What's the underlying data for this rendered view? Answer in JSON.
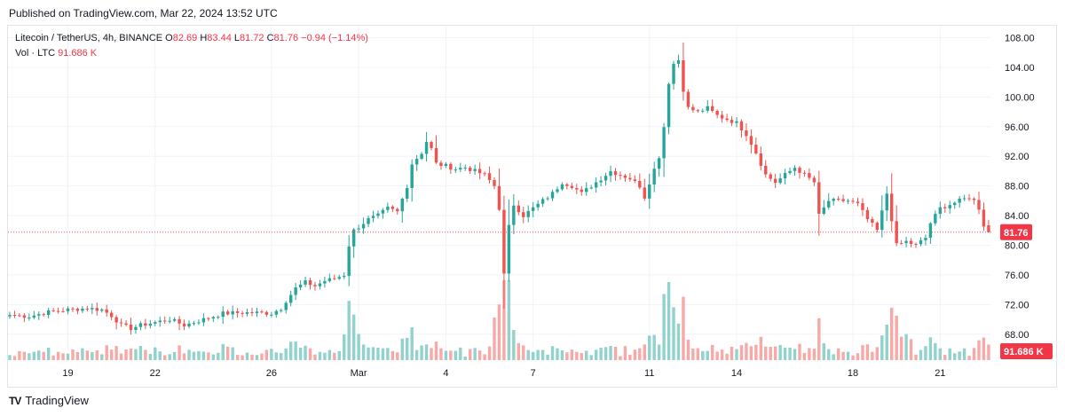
{
  "header": {
    "published": "Published on TradingView.com, Mar 22, 2024 13:52 UTC"
  },
  "legend": {
    "symbol": "Litecoin / TetherUS, 4h, BINANCE",
    "o_label": "O",
    "o_value": "82.69",
    "h_label": "H",
    "h_value": "83.44",
    "l_label": "L",
    "l_value": "81.72",
    "c_label": "C",
    "c_value": "81.76",
    "change": "−0.94 (−1.14%)",
    "vol_label": "Vol · LTC",
    "vol_value": "91.686 K"
  },
  "footer": {
    "brand": "TradingView",
    "logo_text": "TV"
  },
  "colors": {
    "up": "#26a69a",
    "down": "#ef5350",
    "vol_up": "#92d2cc",
    "vol_down": "#f7a9a7",
    "tag": "#f23645",
    "grid": "#f0f3fa",
    "last_line": "#ef5350"
  },
  "chart_data": {
    "type": "candlestick",
    "symbol": "Litecoin / TetherUS",
    "interval": "4h",
    "exchange": "BINANCE",
    "y_ticks": [
      "108.00",
      "104.00",
      "100.00",
      "96.00",
      "92.00",
      "88.00",
      "84.00",
      "80.00",
      "76.00",
      "72.00",
      "68.00"
    ],
    "ylim": [
      64.5,
      109.5
    ],
    "x_ticks": [
      {
        "label": "19",
        "bar": 12
      },
      {
        "label": "22",
        "bar": 30
      },
      {
        "label": "26",
        "bar": 54
      },
      {
        "label": "Mar",
        "bar": 72
      },
      {
        "label": "4",
        "bar": 90
      },
      {
        "label": "7",
        "bar": 108
      },
      {
        "label": "11",
        "bar": 132
      },
      {
        "label": "14",
        "bar": 150
      },
      {
        "label": "18",
        "bar": 174
      },
      {
        "label": "21",
        "bar": 192
      }
    ],
    "last_price": "81.76",
    "last_volume": "91.686 K",
    "grid": true,
    "anchors": [
      [
        0,
        70.6
      ],
      [
        4,
        70.4
      ],
      [
        8,
        71.0
      ],
      [
        12,
        71.3
      ],
      [
        16,
        71.5
      ],
      [
        19,
        71.3
      ],
      [
        21,
        70.5
      ],
      [
        23,
        69.2
      ],
      [
        25,
        68.8
      ],
      [
        27,
        69.2
      ],
      [
        30,
        69.6
      ],
      [
        33,
        70.0
      ],
      [
        36,
        69.2
      ],
      [
        38,
        69.6
      ],
      [
        41,
        70.2
      ],
      [
        44,
        70.8
      ],
      [
        48,
        70.9
      ],
      [
        52,
        70.9
      ],
      [
        54,
        70.8
      ],
      [
        56,
        71.5
      ],
      [
        57,
        72.5
      ],
      [
        59,
        74.2
      ],
      [
        61,
        75.0
      ],
      [
        63,
        74.5
      ],
      [
        65,
        75.2
      ],
      [
        67,
        75.5
      ],
      [
        69,
        76.0
      ],
      [
        70,
        80.0
      ],
      [
        71,
        82.0
      ],
      [
        72,
        82.5
      ],
      [
        74,
        83.5
      ],
      [
        76,
        84.0
      ],
      [
        78,
        85.0
      ],
      [
        80,
        84.5
      ],
      [
        82,
        88.0
      ],
      [
        83,
        91.0
      ],
      [
        85,
        92.5
      ],
      [
        86,
        94.0
      ],
      [
        87,
        93.0
      ],
      [
        88,
        91.0
      ],
      [
        90,
        90.7
      ],
      [
        92,
        90.3
      ],
      [
        94,
        90.5
      ],
      [
        96,
        90.0
      ],
      [
        98,
        89.5
      ],
      [
        100,
        88.0
      ],
      [
        101,
        85.0
      ],
      [
        102,
        76.0
      ],
      [
        103,
        82.5
      ],
      [
        104,
        85.5
      ],
      [
        106,
        84.0
      ],
      [
        108,
        85.0
      ],
      [
        110,
        86.0
      ],
      [
        112,
        87.0
      ],
      [
        114,
        88.5
      ],
      [
        116,
        88.0
      ],
      [
        118,
        87.0
      ],
      [
        120,
        88.0
      ],
      [
        122,
        89.0
      ],
      [
        124,
        90.0
      ],
      [
        126,
        89.5
      ],
      [
        128,
        89.0
      ],
      [
        130,
        88.0
      ],
      [
        131,
        86.5
      ],
      [
        132,
        88.5
      ],
      [
        134,
        92.0
      ],
      [
        135,
        96.0
      ],
      [
        136,
        102.0
      ],
      [
        137,
        104.5
      ],
      [
        138,
        105.0
      ],
      [
        139,
        101.0
      ],
      [
        140,
        98.5
      ],
      [
        142,
        98.0
      ],
      [
        144,
        98.5
      ],
      [
        146,
        97.5
      ],
      [
        148,
        97.0
      ],
      [
        150,
        96.5
      ],
      [
        152,
        95.0
      ],
      [
        154,
        92.5
      ],
      [
        156,
        89.5
      ],
      [
        158,
        88.5
      ],
      [
        160,
        89.5
      ],
      [
        162,
        90.5
      ],
      [
        164,
        89.5
      ],
      [
        166,
        88.5
      ],
      [
        167,
        84.0
      ],
      [
        169,
        86.0
      ],
      [
        171,
        86.0
      ],
      [
        173,
        86.0
      ],
      [
        175,
        85.5
      ],
      [
        177,
        83.5
      ],
      [
        179,
        82.0
      ],
      [
        181,
        87.0
      ],
      [
        183,
        80.0
      ],
      [
        185,
        80.5
      ],
      [
        187,
        80.0
      ],
      [
        189,
        81.0
      ],
      [
        190,
        83.0
      ],
      [
        192,
        85.0
      ],
      [
        194,
        85.5
      ],
      [
        196,
        86.0
      ],
      [
        198,
        86.5
      ],
      [
        199,
        86.0
      ],
      [
        200,
        85.0
      ],
      [
        201,
        82.7
      ],
      [
        202,
        81.76
      ]
    ]
  }
}
